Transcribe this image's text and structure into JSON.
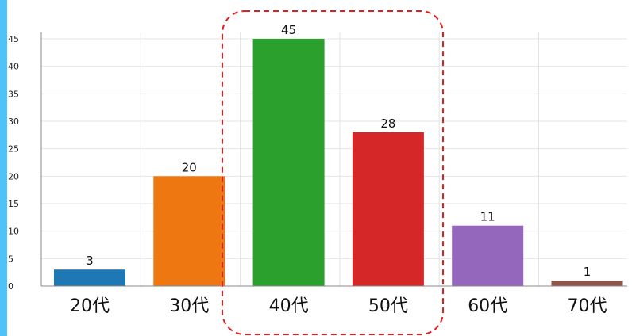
{
  "chart_data": {
    "type": "bar",
    "categories": [
      "20代",
      "30代",
      "40代",
      "50代",
      "60代",
      "70代"
    ],
    "values": [
      3,
      20,
      45,
      28,
      11,
      1
    ],
    "colors": [
      "#1f77b4",
      "#ee7711",
      "#2ca02c",
      "#d62728",
      "#9467bd",
      "#8c564b"
    ],
    "y_ticks": [
      "0",
      "5",
      "10",
      "15",
      "20",
      "25",
      "30",
      "35",
      "40",
      "45"
    ],
    "ylim": [
      0,
      45
    ],
    "grid": true,
    "highlight": {
      "categories": [
        "40代",
        "50代"
      ],
      "style": "dashed",
      "color": "#e02020"
    },
    "title": "",
    "xlabel": "",
    "ylabel": ""
  }
}
